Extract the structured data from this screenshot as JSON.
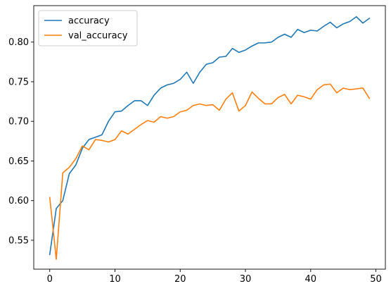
{
  "chart_data": {
    "type": "line",
    "title": "",
    "xlabel": "",
    "ylabel": "",
    "xlim": [
      -2.45,
      51.45
    ],
    "ylim": [
      0.5135,
      0.846
    ],
    "xticks": [
      0,
      10,
      20,
      30,
      40,
      50
    ],
    "yticks": [
      0.55,
      0.6,
      0.65,
      0.7,
      0.75,
      0.8
    ],
    "grid": false,
    "legend_position": "top-left",
    "x": [
      0,
      1,
      2,
      3,
      4,
      5,
      6,
      7,
      8,
      9,
      10,
      11,
      12,
      13,
      14,
      15,
      16,
      17,
      18,
      19,
      20,
      21,
      22,
      23,
      24,
      25,
      26,
      27,
      28,
      29,
      30,
      31,
      32,
      33,
      34,
      35,
      36,
      37,
      38,
      39,
      40,
      41,
      42,
      43,
      44,
      45,
      46,
      47,
      48,
      49
    ],
    "series": [
      {
        "name": "accuracy",
        "color": "#1f77b4",
        "values": [
          0.532,
          0.59,
          0.6,
          0.634,
          0.645,
          0.666,
          0.677,
          0.68,
          0.683,
          0.7,
          0.712,
          0.713,
          0.72,
          0.726,
          0.726,
          0.72,
          0.733,
          0.742,
          0.746,
          0.748,
          0.753,
          0.762,
          0.748,
          0.762,
          0.772,
          0.774,
          0.781,
          0.782,
          0.792,
          0.787,
          0.79,
          0.795,
          0.799,
          0.799,
          0.8,
          0.806,
          0.81,
          0.806,
          0.816,
          0.812,
          0.815,
          0.814,
          0.82,
          0.825,
          0.818,
          0.823,
          0.826,
          0.832,
          0.824,
          0.83
        ]
      },
      {
        "name": "val_accuracy",
        "color": "#ff7f0e",
        "values": [
          0.604,
          0.526,
          0.635,
          0.642,
          0.653,
          0.669,
          0.664,
          0.677,
          0.676,
          0.674,
          0.677,
          0.688,
          0.684,
          0.69,
          0.696,
          0.701,
          0.699,
          0.706,
          0.704,
          0.706,
          0.712,
          0.714,
          0.72,
          0.722,
          0.72,
          0.721,
          0.714,
          0.728,
          0.736,
          0.713,
          0.72,
          0.737,
          0.729,
          0.722,
          0.722,
          0.73,
          0.734,
          0.722,
          0.733,
          0.731,
          0.728,
          0.74,
          0.746,
          0.747,
          0.736,
          0.742,
          0.74,
          0.741,
          0.742,
          0.729
        ]
      }
    ]
  }
}
